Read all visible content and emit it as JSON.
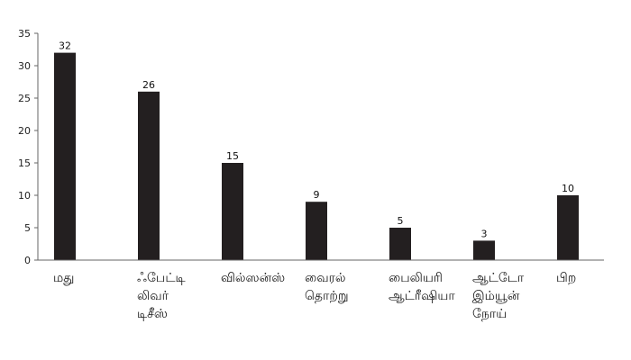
{
  "chart_data": {
    "type": "bar",
    "title": "",
    "xlabel": "",
    "ylabel": "",
    "ylim": [
      0,
      35
    ],
    "yticks": [
      0,
      5,
      10,
      15,
      20,
      25,
      30,
      35
    ],
    "grid": false,
    "legend": "none",
    "bar_color": "#231f20",
    "categories": [
      [
        "மது"
      ],
      [
        "ஃபேட்டி",
        "லிவர்",
        "டிசீஸ்"
      ],
      [
        "வில்ஸன்ஸ்"
      ],
      [
        "வைரல்",
        "தொற்று"
      ],
      [
        "பைலியரி",
        "ஆட்ரீஷியா"
      ],
      [
        "ஆட்டோ",
        "இம்யூன்",
        "நோய்"
      ],
      [
        "பிற"
      ]
    ],
    "values": [
      32,
      26,
      15,
      9,
      5,
      3,
      10
    ],
    "data_labels": [
      "32",
      "26",
      "15",
      "9",
      "5",
      "3",
      "10"
    ]
  }
}
